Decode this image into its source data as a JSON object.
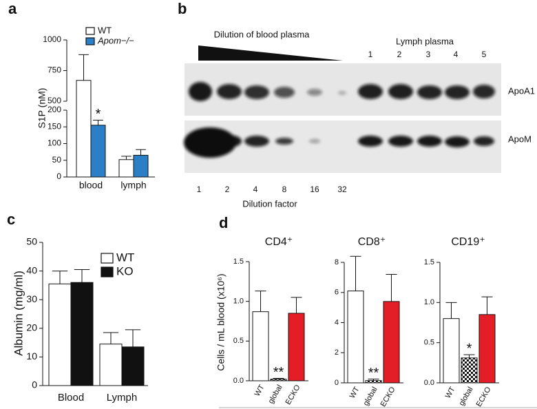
{
  "panel_labels": [
    "a",
    "b",
    "c",
    "d"
  ],
  "blot": {
    "wedge_label": "Dilution of blood plasma",
    "lymph_label": "Lymph plasma",
    "lymph_lanes": [
      "1",
      "2",
      "3",
      "4",
      "5"
    ],
    "rows": [
      "ApoA1",
      "ApoM"
    ],
    "dilution_factors": [
      "1",
      "2",
      "4",
      "8",
      "16",
      "32"
    ],
    "x_label": "Dilution factor"
  },
  "chart_data": [
    {
      "type": "bar",
      "y_label": "S1P (nM)",
      "categories": [
        "blood",
        "lymph"
      ],
      "series": [
        {
          "name": "WT",
          "color": "#ffffff",
          "values": [
            670,
            52
          ],
          "errors": [
            210,
            10
          ]
        },
        {
          "name": "Apom−/−",
          "color": "#2a7fc6",
          "values": [
            155,
            65
          ],
          "errors": [
            15,
            17
          ]
        }
      ],
      "ylim": [
        0,
        1000
      ],
      "axis_break": [
        200,
        500
      ],
      "yticks": [
        0,
        50,
        100,
        150,
        200,
        500,
        750,
        1000
      ],
      "annotations": [
        {
          "text": "*",
          "category": 0,
          "series": 1
        }
      ]
    },
    {
      "type": "bar",
      "y_label": "Albumin (mg/ml)",
      "categories": [
        "Blood",
        "Lymph"
      ],
      "series": [
        {
          "name": "WT",
          "color": "#ffffff",
          "values": [
            35.5,
            14.5
          ],
          "errors": [
            4.5,
            4
          ]
        },
        {
          "name": "KO",
          "color": "#111111",
          "values": [
            36,
            13.5
          ],
          "errors": [
            4.5,
            6
          ]
        }
      ],
      "ylim": [
        0,
        50
      ],
      "yticks": [
        0,
        10,
        20,
        30,
        40,
        50
      ]
    },
    {
      "type": "bar",
      "title": "CD4⁺",
      "y_label": "Cells / mL blood (x10⁶)",
      "categories": [
        "WT",
        "global",
        "ECKO"
      ],
      "values": [
        0.87,
        0.02,
        0.85
      ],
      "errors": [
        0.26,
        0.01,
        0.2
      ],
      "colors": [
        "#ffffff",
        "checkered",
        "#e41e26"
      ],
      "ylim": [
        0,
        1.5
      ],
      "yticks": [
        {
          "value": 0,
          "label": "0.0"
        },
        0.5,
        {
          "value": 1,
          "label": "1.0"
        },
        1.5
      ],
      "annotations": [
        {
          "text": "**",
          "category": 1
        }
      ]
    },
    {
      "type": "bar",
      "title": "CD8⁺",
      "categories": [
        "WT",
        "global",
        "ECKO"
      ],
      "values": [
        6.1,
        0.15,
        5.4
      ],
      "errors": [
        2.3,
        0.1,
        1.8
      ],
      "colors": [
        "#ffffff",
        "checkered",
        "#e41e26"
      ],
      "ylim": [
        0,
        8
      ],
      "yticks": [
        0,
        2,
        4,
        6,
        8
      ],
      "annotations": [
        {
          "text": "**",
          "category": 1
        }
      ]
    },
    {
      "type": "bar",
      "title": "CD19⁺",
      "categories": [
        "WT",
        "global",
        "ECKO"
      ],
      "values": [
        0.8,
        0.31,
        0.85
      ],
      "errors": [
        0.2,
        0.04,
        0.22
      ],
      "colors": [
        "#ffffff",
        "checkered",
        "#e41e26"
      ],
      "ylim": [
        0,
        1.5
      ],
      "yticks": [
        {
          "value": 0,
          "label": "0.0"
        },
        0.5,
        {
          "value": 1,
          "label": "1.0"
        },
        1.5
      ],
      "annotations": [
        {
          "text": "*",
          "category": 1
        }
      ]
    }
  ]
}
